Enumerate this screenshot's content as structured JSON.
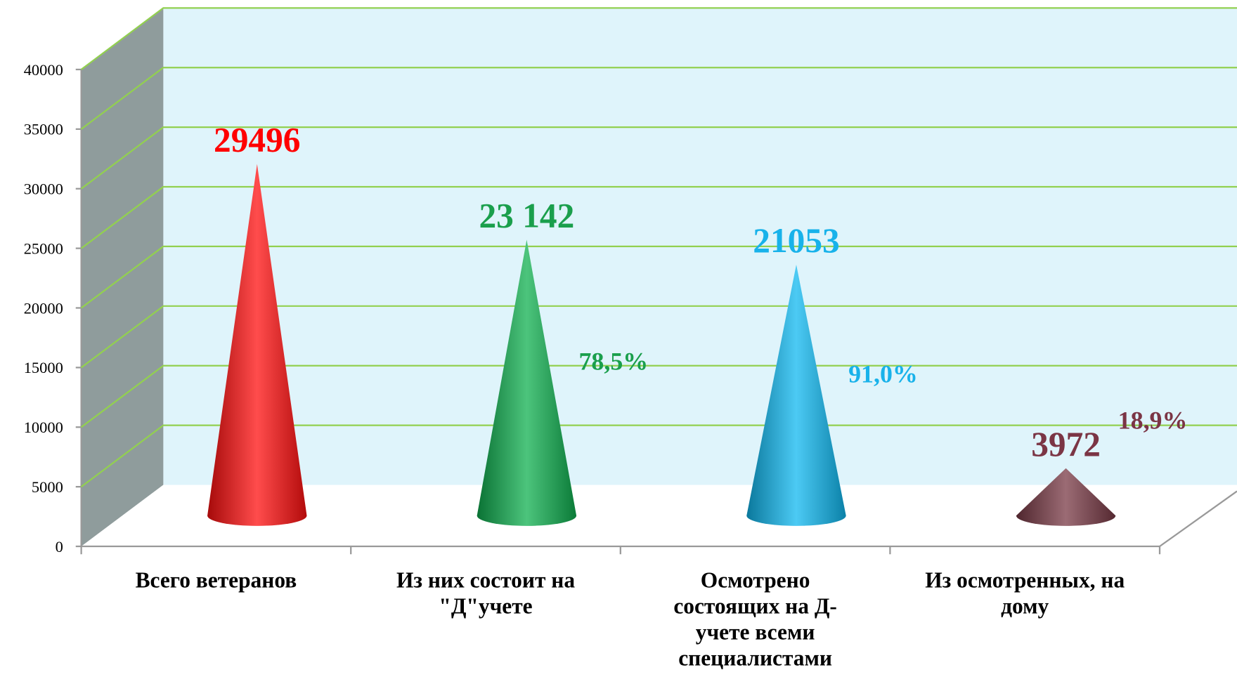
{
  "chart_data": {
    "type": "cone",
    "categories": [
      "Всего ветеранов",
      "Из них состоит на\n\"Д\"учете",
      "Осмотрено\nсостоящих на Д-\nучете всеми\nспециалистами",
      "Из осмотренных, на\nдому"
    ],
    "values": [
      29496,
      23142,
      21053,
      3972
    ],
    "value_labels": [
      "29496",
      "23 142",
      "21053",
      "3972"
    ],
    "percent_labels": [
      null,
      "78,5%",
      "91,0%",
      "18,9%"
    ],
    "colors": [
      "#ff1010",
      "#10b050",
      "#10b8f0",
      "#7a3a46"
    ],
    "label_colors": [
      "#ff0000",
      "#1a9f4c",
      "#18b2ea",
      "#7b3545"
    ],
    "ylim": [
      0,
      40000
    ],
    "yticks": [
      0,
      5000,
      10000,
      15000,
      20000,
      25000,
      30000,
      35000,
      40000
    ],
    "grid": true,
    "grid_color": "#92d050"
  }
}
